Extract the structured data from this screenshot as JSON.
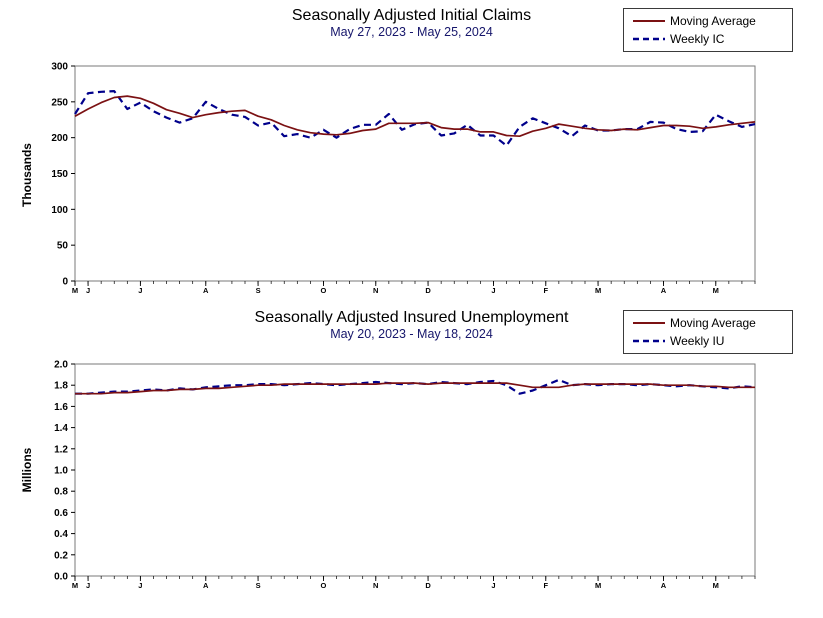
{
  "chart_data": [
    {
      "type": "line",
      "title": "Seasonally Adjusted Initial Claims",
      "subtitle": "May 27, 2023 - May 25, 2024",
      "ylabel": "Thousands",
      "ylim": [
        0,
        300
      ],
      "grid": "none",
      "legend_position": "top-right",
      "n_points": 53,
      "x_unit": "week",
      "yticks": [
        {
          "value": 0,
          "label": "0"
        },
        {
          "value": 50,
          "label": "50"
        },
        {
          "value": 100,
          "label": "100"
        },
        {
          "value": 150,
          "label": "150"
        },
        {
          "value": 200,
          "label": "200"
        },
        {
          "value": 250,
          "label": "250"
        },
        {
          "value": 300,
          "label": "300"
        }
      ],
      "month_ticks": [
        {
          "label": "M",
          "index": 0
        },
        {
          "label": "J",
          "index": 1
        },
        {
          "label": "J",
          "index": 5
        },
        {
          "label": "A",
          "index": 10
        },
        {
          "label": "S",
          "index": 14
        },
        {
          "label": "O",
          "index": 19
        },
        {
          "label": "N",
          "index": 23
        },
        {
          "label": "D",
          "index": 27
        },
        {
          "label": "J",
          "index": 32
        },
        {
          "label": "F",
          "index": 36
        },
        {
          "label": "M",
          "index": 40
        },
        {
          "label": "A",
          "index": 45
        },
        {
          "label": "M",
          "index": 49
        }
      ],
      "series": [
        {
          "name": "Moving Average",
          "color": "#7B1113",
          "style": "solid",
          "values": [
            230,
            240,
            249,
            256,
            258,
            255,
            248,
            239,
            234,
            228,
            232,
            235,
            237,
            238,
            230,
            225,
            217,
            211,
            207,
            205,
            204,
            206,
            210,
            212,
            220,
            220,
            220,
            221,
            214,
            212,
            212,
            208,
            208,
            203,
            202,
            209,
            213,
            219,
            216,
            213,
            211,
            210,
            212,
            211,
            214,
            217,
            217,
            216,
            213,
            215,
            218,
            220,
            222
          ]
        },
        {
          "name": "Weekly IC",
          "color": "#00008B",
          "style": "dashed",
          "values": [
            233,
            262,
            264,
            265,
            240,
            249,
            237,
            228,
            221,
            227,
            250,
            240,
            232,
            229,
            217,
            221,
            202,
            205,
            200,
            211,
            200,
            212,
            218,
            218,
            233,
            211,
            219,
            221,
            203,
            206,
            218,
            203,
            203,
            189,
            215,
            227,
            220,
            213,
            202,
            217,
            210,
            210,
            212,
            212,
            222,
            221,
            212,
            208,
            209,
            232,
            223,
            215,
            219
          ]
        }
      ]
    },
    {
      "type": "line",
      "title": "Seasonally Adjusted Insured Unemployment",
      "subtitle": "May 20, 2023 - May 18, 2024",
      "ylabel": "Millions",
      "ylim": [
        0,
        2.0
      ],
      "grid": "none",
      "legend_position": "top-right",
      "n_points": 53,
      "x_unit": "week",
      "yticks": [
        {
          "value": 0.0,
          "label": "0.0"
        },
        {
          "value": 0.2,
          "label": "0.2"
        },
        {
          "value": 0.4,
          "label": "0.4"
        },
        {
          "value": 0.6,
          "label": "0.6"
        },
        {
          "value": 0.8,
          "label": "0.8"
        },
        {
          "value": 1.0,
          "label": "1.0"
        },
        {
          "value": 1.2,
          "label": "1.2"
        },
        {
          "value": 1.4,
          "label": "1.4"
        },
        {
          "value": 1.6,
          "label": "1.6"
        },
        {
          "value": 1.8,
          "label": "1.8"
        },
        {
          "value": 2.0,
          "label": "2.0"
        }
      ],
      "month_ticks": [
        {
          "label": "M",
          "index": 0
        },
        {
          "label": "J",
          "index": 1
        },
        {
          "label": "J",
          "index": 5
        },
        {
          "label": "A",
          "index": 10
        },
        {
          "label": "S",
          "index": 14
        },
        {
          "label": "O",
          "index": 19
        },
        {
          "label": "N",
          "index": 23
        },
        {
          "label": "D",
          "index": 27
        },
        {
          "label": "J",
          "index": 32
        },
        {
          "label": "F",
          "index": 36
        },
        {
          "label": "M",
          "index": 40
        },
        {
          "label": "A",
          "index": 45
        },
        {
          "label": "M",
          "index": 49
        }
      ],
      "series": [
        {
          "name": "Moving Average",
          "color": "#7B1113",
          "style": "solid",
          "values": [
            1.72,
            1.72,
            1.72,
            1.73,
            1.73,
            1.74,
            1.75,
            1.75,
            1.76,
            1.76,
            1.77,
            1.77,
            1.78,
            1.79,
            1.8,
            1.8,
            1.81,
            1.81,
            1.81,
            1.81,
            1.81,
            1.81,
            1.81,
            1.81,
            1.82,
            1.82,
            1.82,
            1.81,
            1.82,
            1.82,
            1.82,
            1.82,
            1.82,
            1.82,
            1.8,
            1.78,
            1.78,
            1.78,
            1.8,
            1.81,
            1.81,
            1.81,
            1.81,
            1.81,
            1.81,
            1.8,
            1.8,
            1.8,
            1.79,
            1.79,
            1.78,
            1.78,
            1.78
          ]
        },
        {
          "name": "Weekly IU",
          "color": "#00008B",
          "style": "dashed",
          "values": [
            1.72,
            1.72,
            1.73,
            1.74,
            1.74,
            1.75,
            1.76,
            1.75,
            1.77,
            1.76,
            1.78,
            1.79,
            1.8,
            1.8,
            1.81,
            1.81,
            1.8,
            1.81,
            1.82,
            1.81,
            1.8,
            1.81,
            1.82,
            1.83,
            1.82,
            1.81,
            1.82,
            1.81,
            1.83,
            1.82,
            1.81,
            1.83,
            1.84,
            1.8,
            1.72,
            1.75,
            1.8,
            1.85,
            1.8,
            1.81,
            1.8,
            1.81,
            1.81,
            1.8,
            1.81,
            1.8,
            1.79,
            1.8,
            1.79,
            1.78,
            1.77,
            1.79,
            1.78
          ]
        }
      ]
    }
  ]
}
